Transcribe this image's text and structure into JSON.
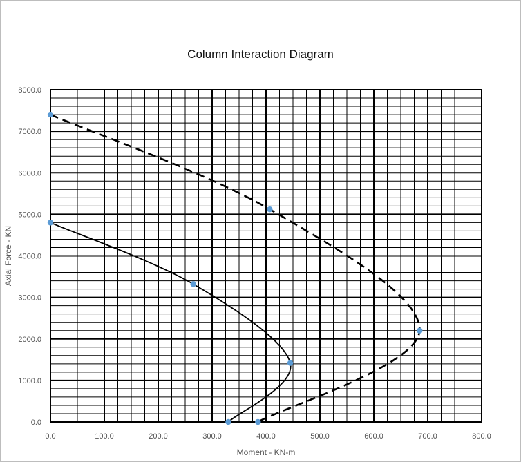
{
  "chart_data": {
    "type": "scatter",
    "title": "Column Interaction Diagram",
    "xlabel": "Moment - KN-m",
    "ylabel": "Axial Force - KN",
    "xlim": [
      0,
      800
    ],
    "ylim": [
      0,
      8000
    ],
    "x_ticks": [
      "0.0",
      "100.0",
      "200.0",
      "300.0",
      "400.0",
      "500.0",
      "600.0",
      "700.0",
      "800.0"
    ],
    "y_ticks": [
      "0.0",
      "1000.0",
      "2000.0",
      "3000.0",
      "4000.0",
      "5000.0",
      "6000.0",
      "7000.0",
      "8000.0"
    ],
    "grid": true,
    "legend": "none",
    "marker_color": "#5b9bd5",
    "line_color": "#000000",
    "series": [
      {
        "style": "solid",
        "points": [
          [
            0,
            4800
          ],
          [
            265,
            3320
          ],
          [
            445,
            1420
          ],
          [
            330,
            0
          ]
        ]
      },
      {
        "style": "dashed",
        "points": [
          [
            0,
            7400
          ],
          [
            407,
            5120
          ],
          [
            685,
            2200
          ],
          [
            385,
            0
          ]
        ]
      }
    ]
  }
}
